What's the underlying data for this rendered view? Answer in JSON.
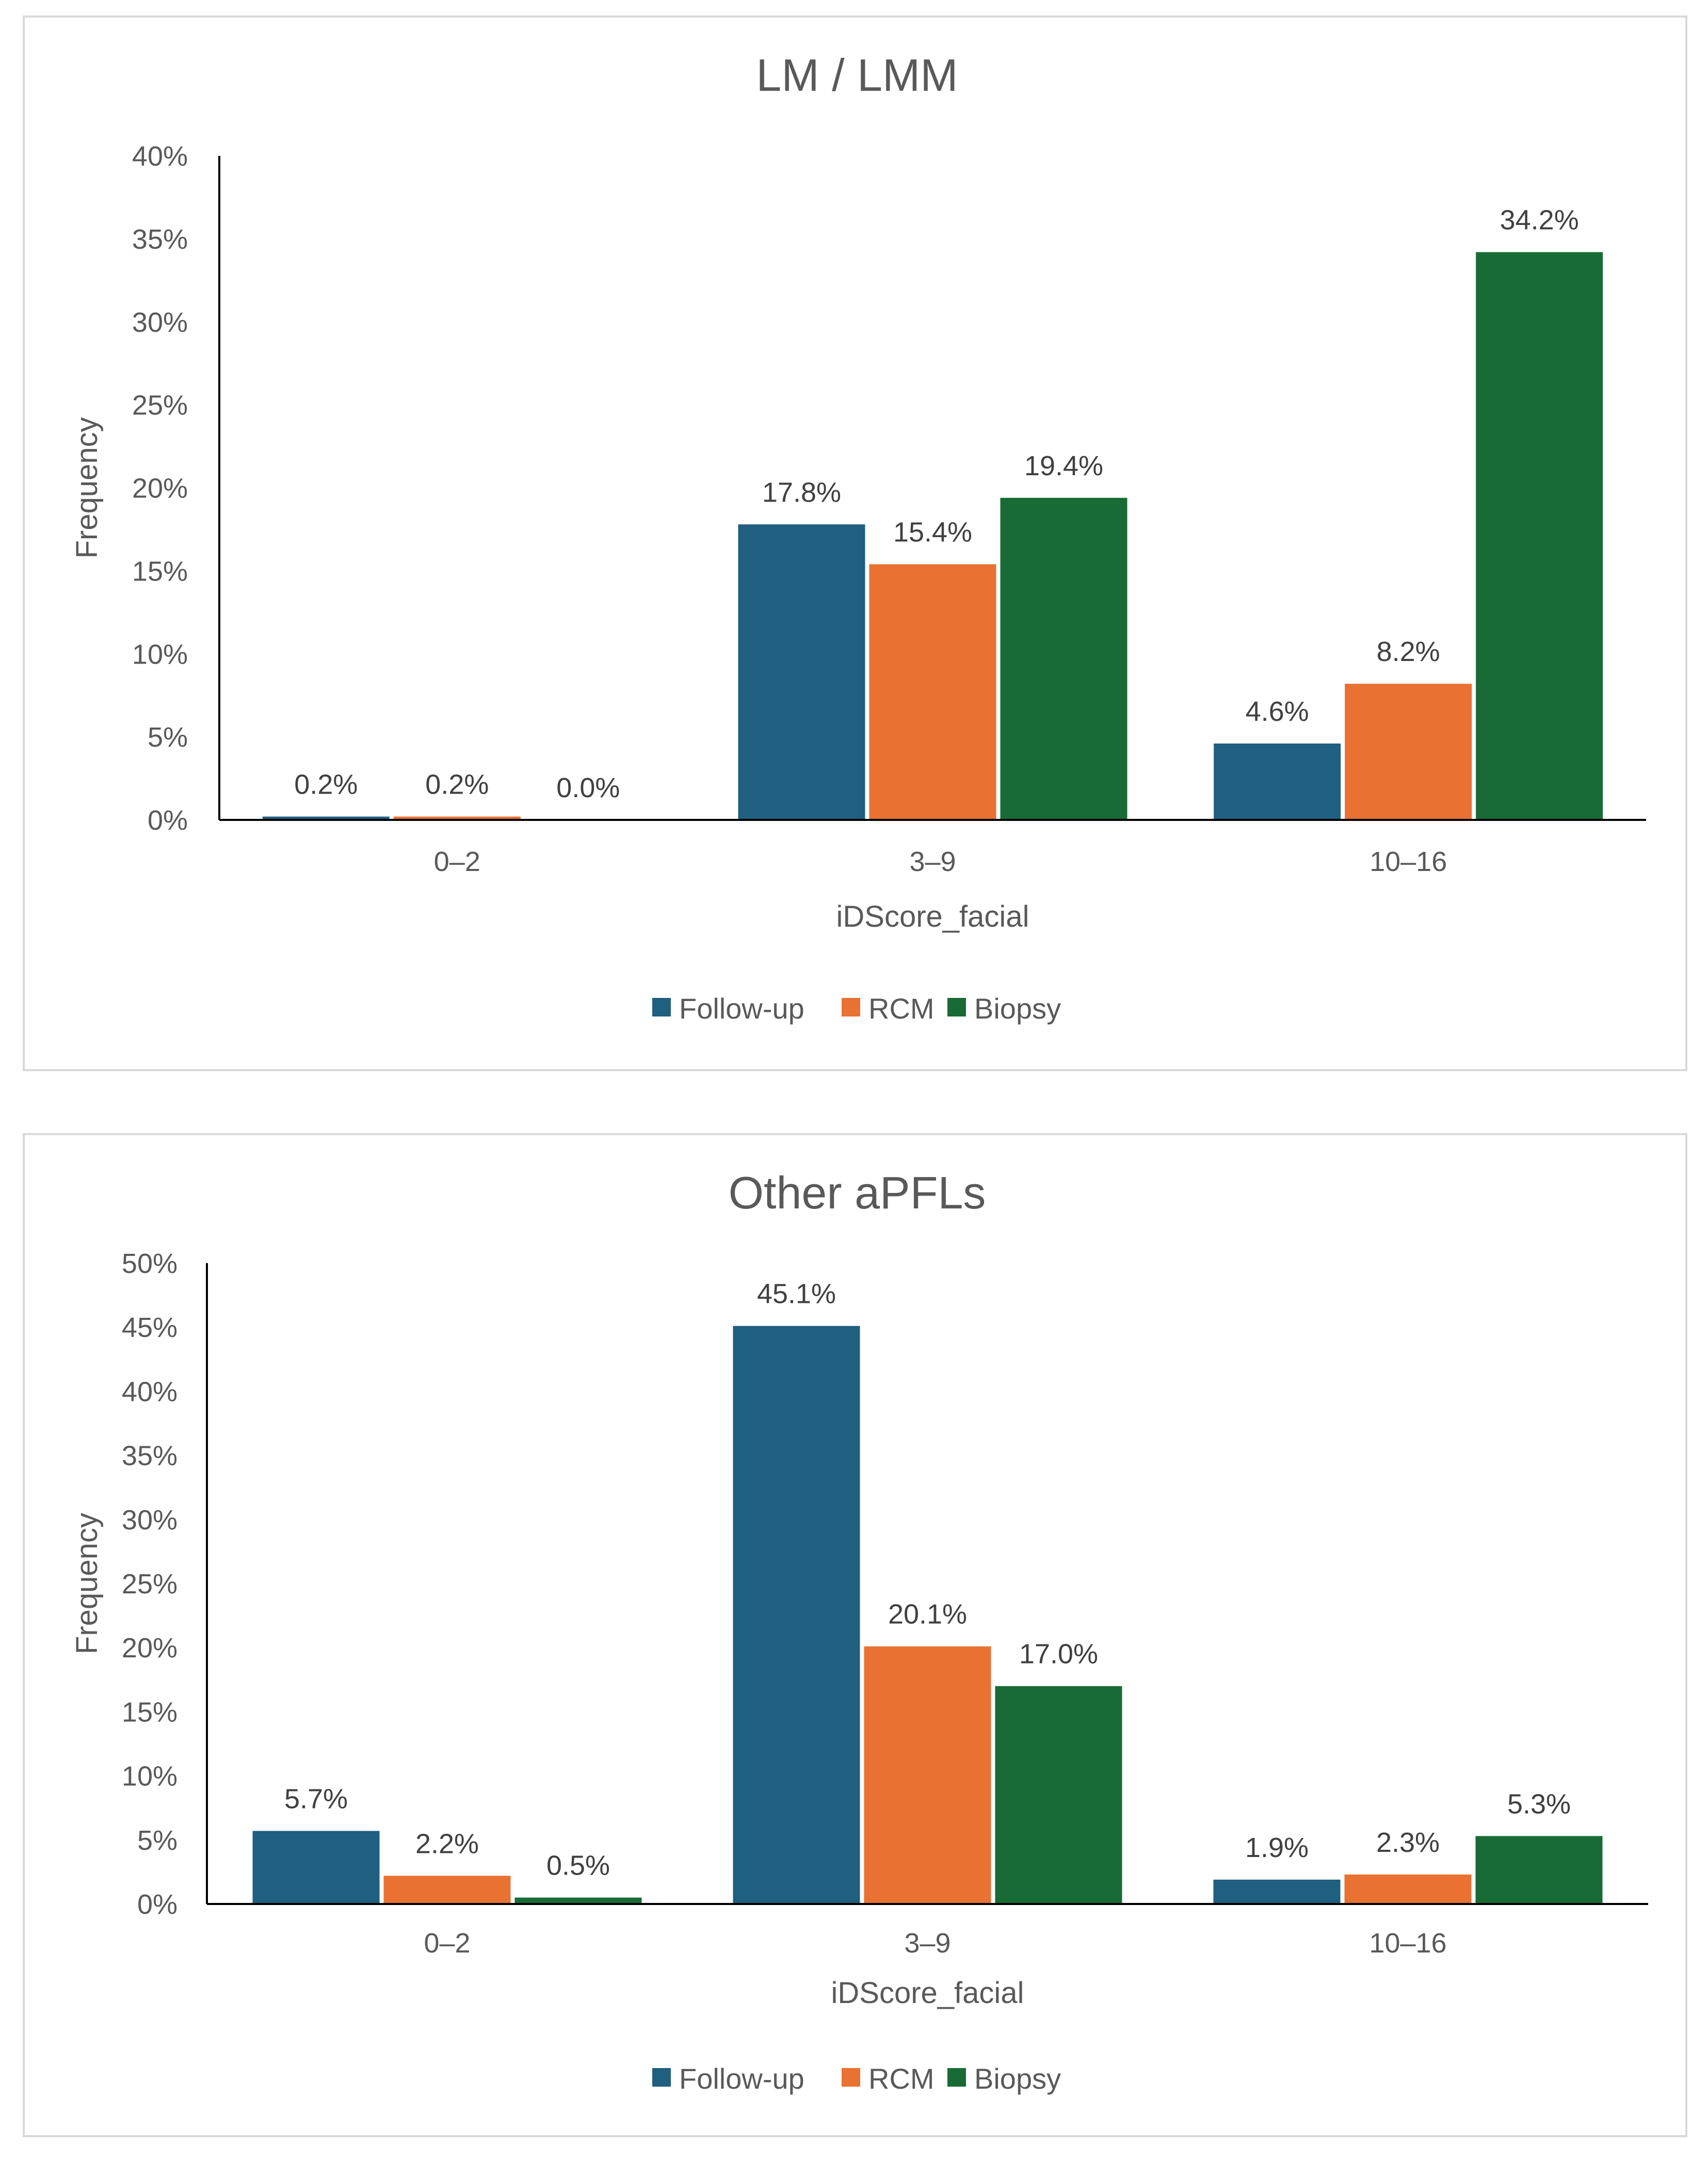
{
  "colors": {
    "follow_up": "#1f5f7f",
    "rcm": "#e97132",
    "biopsy": "#196b36",
    "axis": "#000000",
    "text": "#595959"
  },
  "chart_data": [
    {
      "type": "bar",
      "title": "LM / LMM",
      "xlabel": "iDScore_facial",
      "ylabel": "Frequency",
      "categories": [
        "0–2",
        "3–9",
        "10–16"
      ],
      "ylim": [
        0,
        40
      ],
      "yticks": [
        0,
        5,
        10,
        15,
        20,
        25,
        30,
        35,
        40
      ],
      "ytick_labels": [
        "0%",
        "5%",
        "10%",
        "15%",
        "20%",
        "25%",
        "30%",
        "35%",
        "40%"
      ],
      "series": [
        {
          "name": "Follow-up",
          "values": [
            0.2,
            17.8,
            4.6
          ],
          "labels": [
            "0.2%",
            "17.8%",
            "4.6%"
          ]
        },
        {
          "name": "RCM",
          "values": [
            0.2,
            15.4,
            8.2
          ],
          "labels": [
            "0.2%",
            "15.4%",
            "8.2%"
          ]
        },
        {
          "name": "Biopsy",
          "values": [
            0.0,
            19.4,
            34.2
          ],
          "labels": [
            "0.0%",
            "19.4%",
            "34.2%"
          ]
        }
      ],
      "legend": "bottom"
    },
    {
      "type": "bar",
      "title": "Other aPFLs",
      "xlabel": "iDScore_facial",
      "ylabel": "Frequency",
      "categories": [
        "0–2",
        "3–9",
        "10–16"
      ],
      "ylim": [
        0,
        50
      ],
      "yticks": [
        0,
        5,
        10,
        15,
        20,
        25,
        30,
        35,
        40,
        45,
        50
      ],
      "ytick_labels": [
        "0%",
        "5%",
        "10%",
        "15%",
        "20%",
        "25%",
        "30%",
        "35%",
        "40%",
        "45%",
        "50%"
      ],
      "series": [
        {
          "name": "Follow-up",
          "values": [
            5.7,
            45.1,
            1.9
          ],
          "labels": [
            "5.7%",
            "45.1%",
            "1.9%"
          ]
        },
        {
          "name": "RCM",
          "values": [
            2.2,
            20.1,
            2.3
          ],
          "labels": [
            "2.2%",
            "20.1%",
            "2.3%"
          ]
        },
        {
          "name": "Biopsy",
          "values": [
            0.5,
            17.0,
            5.3
          ],
          "labels": [
            "0.5%",
            "17.0%",
            "5.3%"
          ]
        }
      ],
      "legend": "bottom"
    }
  ]
}
